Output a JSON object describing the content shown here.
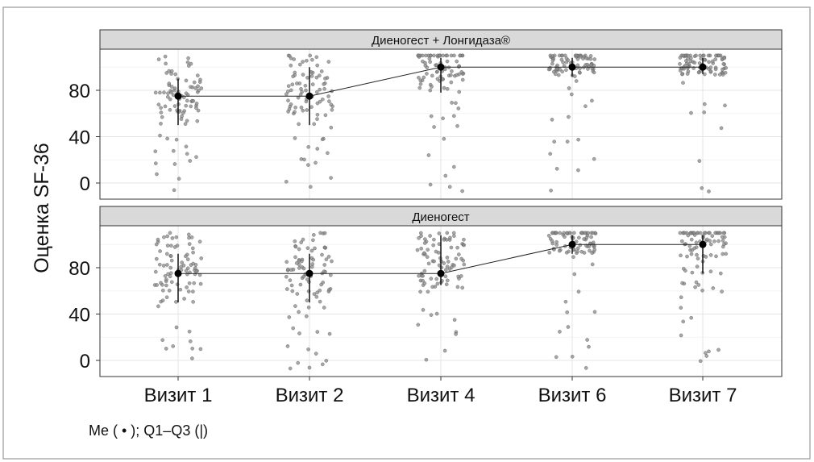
{
  "chart_data": {
    "type": "scatter",
    "ylabel": "Оценка SF-36",
    "xlabel": "",
    "categories": [
      "Визит 1",
      "Визит 2",
      "Визит 4",
      "Визит 6",
      "Визит 7"
    ],
    "y_ticks": [
      "0",
      "40",
      "80"
    ],
    "y_tick_values": [
      0,
      40,
      80
    ],
    "ylim": [
      -10,
      112
    ],
    "grid": true,
    "note": "Me ( • ); Q1–Q3 (|)",
    "panels": [
      {
        "title": "Диеногест + Лонгидаза®",
        "median": [
          75,
          75,
          100,
          100,
          100
        ],
        "q1": [
          50,
          50,
          78,
          92,
          94
        ],
        "q3": [
          90,
          100,
          108,
          108,
          108
        ]
      },
      {
        "title": "Диеногест",
        "median": [
          75,
          75,
          75,
          100,
          100
        ],
        "q1": [
          50,
          50,
          65,
          92,
          75
        ],
        "q3": [
          92,
          92,
          108,
          108,
          108
        ]
      }
    ]
  },
  "colors": {
    "strip_background": "#d9d9d9",
    "points": "#8a8a8a",
    "median": "#000000",
    "grid": "#e4e4e4"
  }
}
